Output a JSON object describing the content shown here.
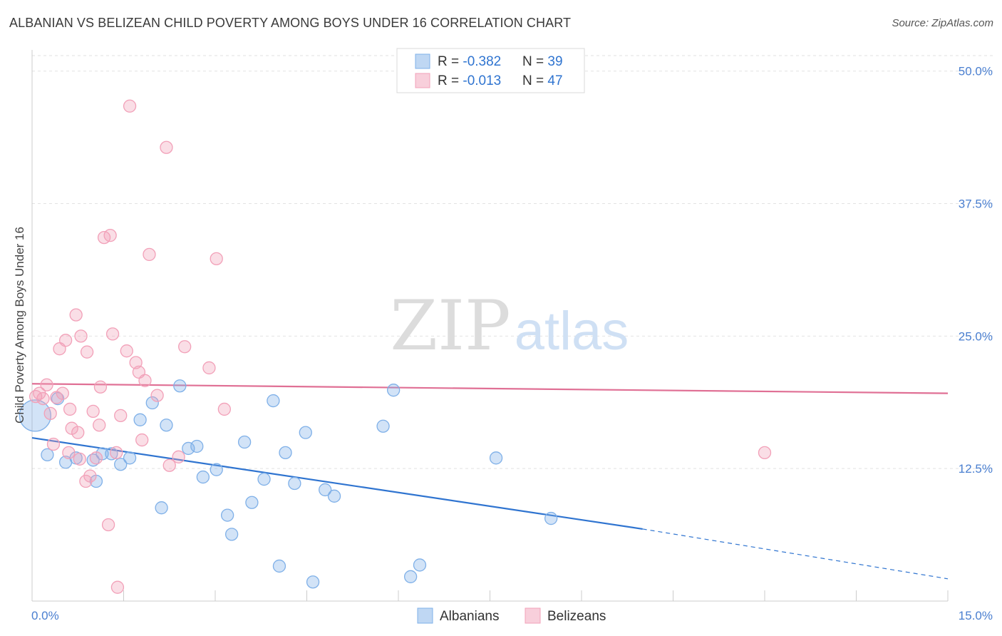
{
  "title": "ALBANIAN VS BELIZEAN CHILD POVERTY AMONG BOYS UNDER 16 CORRELATION CHART",
  "source": "Source: ZipAtlas.com",
  "watermark": {
    "zip": "ZIP",
    "atlas": "atlas"
  },
  "legend_top": [
    {
      "r_label": "R = ",
      "r_value": "-0.382",
      "n_label": "N = ",
      "n_value": "39",
      "color": "#7fb0e8"
    },
    {
      "r_label": "R = ",
      "r_value": "-0.013",
      "n_label": "N = ",
      "n_value": "47",
      "color": "#f2a0b8"
    }
  ],
  "chart_data": {
    "type": "scatter",
    "title": "ALBANIAN VS BELIZEAN CHILD POVERTY AMONG BOYS UNDER 16 CORRELATION CHART",
    "xlabel": "",
    "ylabel": "Child Poverty Among Boys Under 16",
    "xlim": [
      0,
      15
    ],
    "ylim": [
      0,
      52
    ],
    "x_tick_labels": [
      "0.0%",
      "15.0%"
    ],
    "y_ticks": [
      12.5,
      25.0,
      37.5,
      50.0
    ],
    "y_tick_labels": [
      "12.5%",
      "25.0%",
      "37.5%",
      "50.0%"
    ],
    "grid": true,
    "legend_position": "bottom-center",
    "series": [
      {
        "name": "Albanians",
        "color": "#7fb0e8",
        "line_color": "#2f74d0",
        "r": -0.382,
        "n": 39,
        "trend": {
          "x0": 0.0,
          "y0": 15.4,
          "x1": 10.0,
          "y1": 6.8,
          "dash_x1": 15.0,
          "dash_y1": 2.1
        },
        "points": [
          {
            "x": 0.05,
            "y": 17.5,
            "big": true
          },
          {
            "x": 0.25,
            "y": 13.8
          },
          {
            "x": 0.42,
            "y": 19.1
          },
          {
            "x": 0.55,
            "y": 13.1
          },
          {
            "x": 0.72,
            "y": 13.5
          },
          {
            "x": 1.0,
            "y": 13.3
          },
          {
            "x": 1.15,
            "y": 13.9
          },
          {
            "x": 1.3,
            "y": 13.9
          },
          {
            "x": 1.45,
            "y": 12.9
          },
          {
            "x": 1.6,
            "y": 13.5
          },
          {
            "x": 1.05,
            "y": 11.3
          },
          {
            "x": 1.77,
            "y": 17.1
          },
          {
            "x": 1.97,
            "y": 18.7
          },
          {
            "x": 2.2,
            "y": 16.6
          },
          {
            "x": 2.42,
            "y": 20.3
          },
          {
            "x": 2.56,
            "y": 14.4
          },
          {
            "x": 2.7,
            "y": 14.6
          },
          {
            "x": 2.12,
            "y": 8.8
          },
          {
            "x": 2.8,
            "y": 11.7
          },
          {
            "x": 3.02,
            "y": 12.4
          },
          {
            "x": 3.2,
            "y": 8.1
          },
          {
            "x": 3.27,
            "y": 6.3
          },
          {
            "x": 3.48,
            "y": 15.0
          },
          {
            "x": 3.6,
            "y": 9.3
          },
          {
            "x": 3.8,
            "y": 11.5
          },
          {
            "x": 3.95,
            "y": 18.9
          },
          {
            "x": 4.15,
            "y": 14.0
          },
          {
            "x": 4.05,
            "y": 3.3
          },
          {
            "x": 4.3,
            "y": 11.1
          },
          {
            "x": 4.48,
            "y": 15.9
          },
          {
            "x": 4.6,
            "y": 1.8
          },
          {
            "x": 4.8,
            "y": 10.5
          },
          {
            "x": 4.95,
            "y": 9.9
          },
          {
            "x": 5.75,
            "y": 16.5
          },
          {
            "x": 5.92,
            "y": 19.9
          },
          {
            "x": 6.2,
            "y": 2.3
          },
          {
            "x": 6.35,
            "y": 3.4
          },
          {
            "x": 7.6,
            "y": 13.5
          },
          {
            "x": 8.5,
            "y": 7.8
          }
        ]
      },
      {
        "name": "Belizeans",
        "color": "#f2a0b8",
        "line_color": "#e07095",
        "r": -0.013,
        "n": 47,
        "trend": {
          "x0": 0.0,
          "y0": 20.5,
          "x1": 15.0,
          "y1": 19.6
        },
        "points": [
          {
            "x": 0.06,
            "y": 19.3
          },
          {
            "x": 0.12,
            "y": 19.6
          },
          {
            "x": 0.18,
            "y": 19.1
          },
          {
            "x": 0.24,
            "y": 20.4
          },
          {
            "x": 0.3,
            "y": 17.7
          },
          {
            "x": 0.35,
            "y": 14.8
          },
          {
            "x": 0.4,
            "y": 19.2
          },
          {
            "x": 0.45,
            "y": 23.8
          },
          {
            "x": 0.5,
            "y": 19.6
          },
          {
            "x": 0.55,
            "y": 24.6
          },
          {
            "x": 0.6,
            "y": 14.0
          },
          {
            "x": 0.62,
            "y": 18.1
          },
          {
            "x": 0.65,
            "y": 16.3
          },
          {
            "x": 0.72,
            "y": 27.0
          },
          {
            "x": 0.75,
            "y": 15.9
          },
          {
            "x": 0.78,
            "y": 13.4
          },
          {
            "x": 0.8,
            "y": 25.0
          },
          {
            "x": 0.88,
            "y": 11.3
          },
          {
            "x": 0.9,
            "y": 23.5
          },
          {
            "x": 0.95,
            "y": 11.8
          },
          {
            "x": 1.0,
            "y": 17.9
          },
          {
            "x": 1.05,
            "y": 13.5
          },
          {
            "x": 1.1,
            "y": 16.6
          },
          {
            "x": 1.12,
            "y": 20.2
          },
          {
            "x": 1.18,
            "y": 34.3
          },
          {
            "x": 1.25,
            "y": 7.2
          },
          {
            "x": 1.28,
            "y": 34.5
          },
          {
            "x": 1.32,
            "y": 25.2
          },
          {
            "x": 1.38,
            "y": 14.0
          },
          {
            "x": 1.4,
            "y": 1.3
          },
          {
            "x": 1.45,
            "y": 17.5
          },
          {
            "x": 1.55,
            "y": 23.6
          },
          {
            "x": 1.6,
            "y": 46.7
          },
          {
            "x": 1.7,
            "y": 22.5
          },
          {
            "x": 1.75,
            "y": 21.6
          },
          {
            "x": 1.8,
            "y": 15.2
          },
          {
            "x": 1.85,
            "y": 20.8
          },
          {
            "x": 1.92,
            "y": 32.7
          },
          {
            "x": 2.05,
            "y": 19.4
          },
          {
            "x": 2.2,
            "y": 42.8
          },
          {
            "x": 2.25,
            "y": 12.8
          },
          {
            "x": 2.4,
            "y": 13.6
          },
          {
            "x": 2.5,
            "y": 24.0
          },
          {
            "x": 2.9,
            "y": 22.0
          },
          {
            "x": 3.02,
            "y": 32.3
          },
          {
            "x": 3.15,
            "y": 18.1
          },
          {
            "x": 12.0,
            "y": 14.0
          }
        ]
      }
    ]
  }
}
